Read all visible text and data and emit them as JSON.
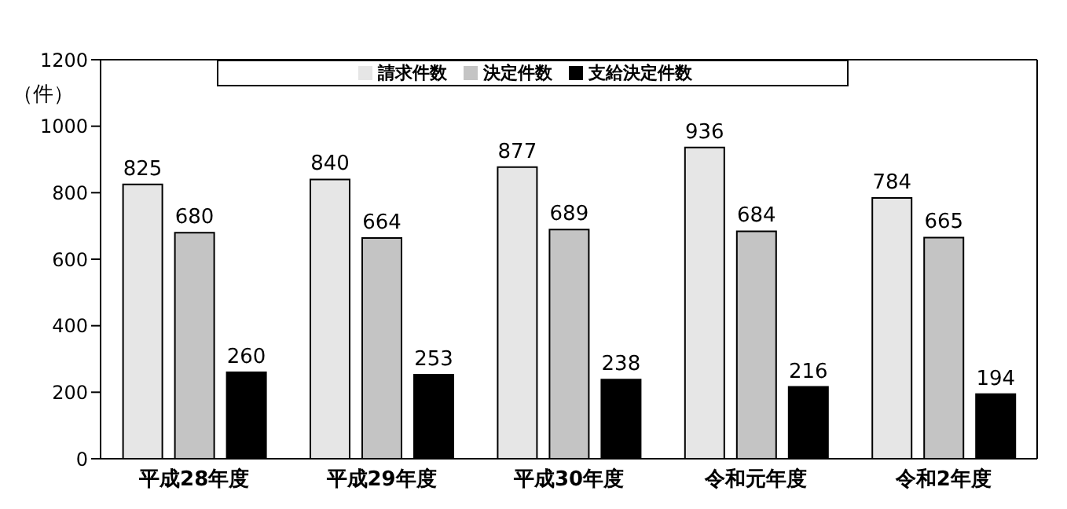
{
  "chart_data": {
    "type": "bar",
    "ylabel": "（件）",
    "categories": [
      "平成28年度",
      "平成29年度",
      "平成30年度",
      "令和元年度",
      "令和2年度"
    ],
    "series": [
      {
        "name": "請求件数",
        "color": "#e6e6e6",
        "values": [
          825,
          840,
          877,
          936,
          784
        ]
      },
      {
        "name": "決定件数",
        "color": "#c4c4c4",
        "values": [
          680,
          664,
          689,
          684,
          665
        ]
      },
      {
        "name": "支給決定件数",
        "color": "#000000",
        "values": [
          260,
          253,
          238,
          216,
          194
        ]
      }
    ],
    "ylim": [
      0,
      1200
    ],
    "yticks": [
      0,
      200,
      400,
      600,
      800,
      1000,
      1200
    ],
    "legend": "top",
    "data_labels": true
  }
}
